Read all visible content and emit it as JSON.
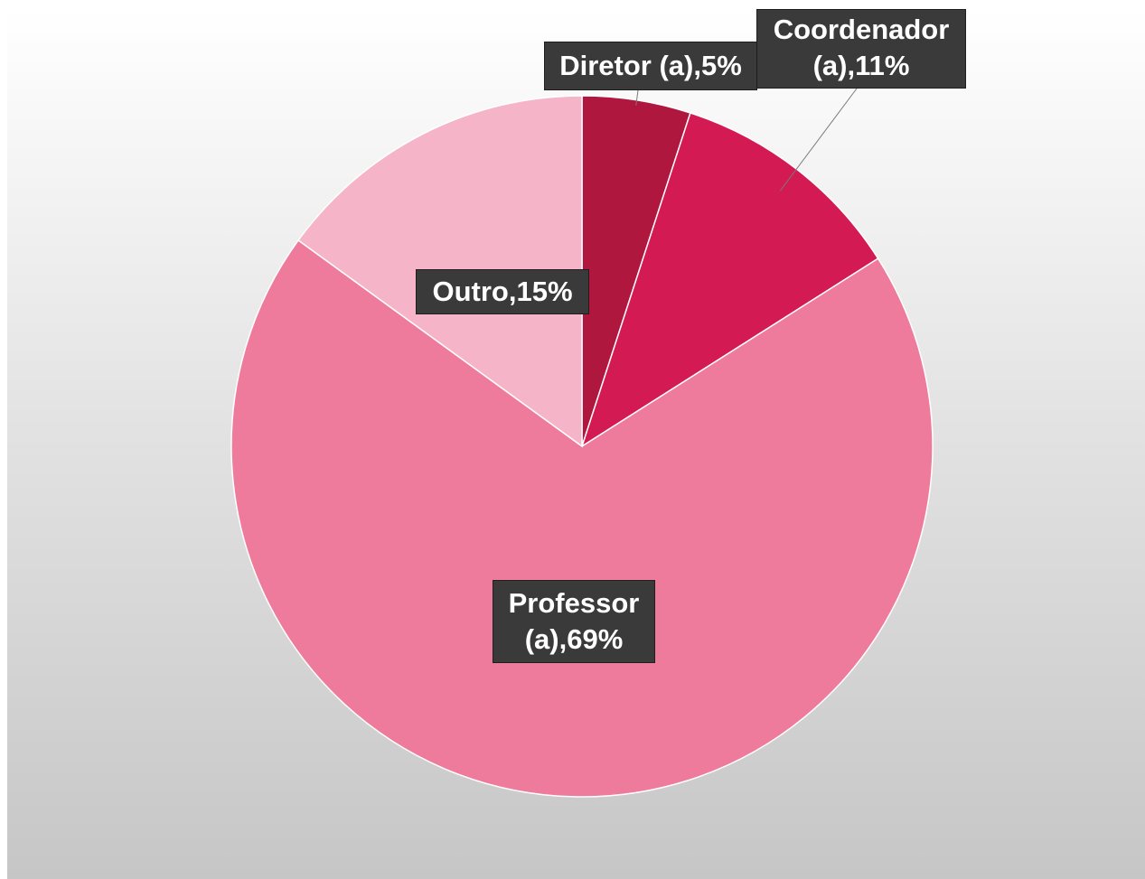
{
  "chart_data": {
    "type": "pie",
    "start_angle_deg": 0,
    "direction": "clockwise",
    "slices": [
      {
        "label_line1": "Diretor (a),5%",
        "label_line2": "",
        "value": 5,
        "color": "#b0173f"
      },
      {
        "label_line1": "Coordenador",
        "label_line2": "(a),11%",
        "value": 11,
        "color": "#d41a52"
      },
      {
        "label_line1": "Professor",
        "label_line2": "(a),69%",
        "value": 69,
        "color": "#ee7b9c"
      },
      {
        "label_line1": "Outro,15%",
        "label_line2": "",
        "value": 15,
        "color": "#f5b4c7"
      }
    ],
    "slice_border_color": "#ffffff",
    "label_box_color": "#3a3a3a",
    "label_text_color": "#ffffff",
    "leader_line_color": "#7a7a7a",
    "background": "gradient white to gray"
  }
}
